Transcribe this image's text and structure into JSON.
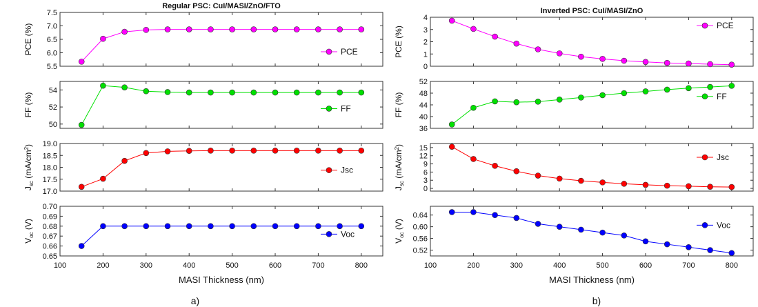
{
  "captions": [
    "a)",
    "b)"
  ],
  "chart_data": [
    {
      "type": "line",
      "title": "Regular PSC: CuI/MASI/ZnO/FTO",
      "xlabel": "MASI Thickness (nm)",
      "x": [
        150,
        200,
        250,
        300,
        350,
        400,
        450,
        500,
        550,
        600,
        650,
        700,
        750,
        800
      ],
      "xlim": [
        100,
        850
      ],
      "xticks": [
        "100",
        "200",
        "300",
        "400",
        "500",
        "600",
        "700",
        "800"
      ],
      "legend_position": "right",
      "panels": [
        {
          "name": "PCE",
          "ylabel": "PCE (%)",
          "color": "#ff00ff",
          "ylim": [
            5.5,
            7.5
          ],
          "yticks": [
            "5.5",
            "6.0",
            "6.5",
            "7.0",
            "7.5"
          ],
          "values": [
            5.67,
            6.52,
            6.78,
            6.85,
            6.87,
            6.87,
            6.87,
            6.87,
            6.87,
            6.87,
            6.87,
            6.87,
            6.87,
            6.87
          ]
        },
        {
          "name": "FF",
          "ylabel": "FF (%)",
          "color": "#00e000",
          "ylim": [
            49.5,
            55
          ],
          "yticks": [
            "50",
            "52",
            "54"
          ],
          "values": [
            49.9,
            54.5,
            54.3,
            53.85,
            53.75,
            53.7,
            53.7,
            53.7,
            53.7,
            53.7,
            53.7,
            53.7,
            53.7,
            53.7
          ]
        },
        {
          "name": "Jsc",
          "ylabel_main": "J",
          "ylabel_sub": "sc",
          "ylabel_tail": " (mA/cm",
          "ylabel_sup": "2",
          "ylabel_end": ")",
          "color": "#ff0000",
          "ylim": [
            17.0,
            19.0
          ],
          "yticks": [
            "17.0",
            "17.5",
            "18.0",
            "18.5",
            "19.0"
          ],
          "values": [
            17.18,
            17.52,
            18.27,
            18.6,
            18.67,
            18.69,
            18.7,
            18.7,
            18.7,
            18.7,
            18.7,
            18.7,
            18.7,
            18.7
          ]
        },
        {
          "name": "Voc",
          "ylabel_main": "V",
          "ylabel_sub": "oc",
          "ylabel_tail": " (V)",
          "color": "#0000ff",
          "ylim": [
            0.65,
            0.7
          ],
          "yticks": [
            "0.65",
            "0.66",
            "0.67",
            "0.68",
            "0.69",
            "0.70"
          ],
          "values": [
            0.66,
            0.68,
            0.68,
            0.68,
            0.68,
            0.68,
            0.68,
            0.68,
            0.68,
            0.68,
            0.68,
            0.68,
            0.68,
            0.68
          ]
        }
      ]
    },
    {
      "type": "line",
      "title": "Inverted PSC: CuI/MASI/ZnO",
      "xlabel": "MASI Thickness (nm)",
      "x": [
        150,
        200,
        250,
        300,
        350,
        400,
        450,
        500,
        550,
        600,
        650,
        700,
        750,
        800
      ],
      "xlim": [
        100,
        850
      ],
      "xticks": [
        "100",
        "200",
        "300",
        "400",
        "500",
        "600",
        "700",
        "800"
      ],
      "legend_position": "top-right",
      "panels": [
        {
          "name": "PCE",
          "ylabel": "PCE (%)",
          "color": "#ff00ff",
          "ylim": [
            0,
            4
          ],
          "yticks": [
            "0",
            "1",
            "2",
            "3",
            "4"
          ],
          "values": [
            3.72,
            3.05,
            2.42,
            1.85,
            1.38,
            1.05,
            0.78,
            0.6,
            0.45,
            0.35,
            0.27,
            0.22,
            0.17,
            0.13
          ]
        },
        {
          "name": "FF",
          "ylabel": "FF (%)",
          "color": "#00e000",
          "ylim": [
            36,
            52
          ],
          "yticks": [
            "36",
            "40",
            "44",
            "48",
            "52"
          ],
          "values": [
            37.3,
            43.0,
            45.2,
            44.9,
            45.1,
            45.8,
            46.5,
            47.3,
            48.0,
            48.6,
            49.2,
            49.7,
            50.1,
            50.5
          ]
        },
        {
          "name": "Jsc",
          "ylabel_main": "J",
          "ylabel_sub": "sc",
          "ylabel_tail": " (mA/cm",
          "ylabel_sup": "2",
          "ylabel_end": ")",
          "color": "#ff0000",
          "ylim": [
            -1,
            16.5
          ],
          "yticks": [
            "0",
            "3",
            "6",
            "9",
            "12",
            "15"
          ],
          "values": [
            15.3,
            10.8,
            8.3,
            6.3,
            4.7,
            3.6,
            2.8,
            2.2,
            1.7,
            1.3,
            1.0,
            0.8,
            0.6,
            0.5
          ]
        },
        {
          "name": "Voc",
          "ylabel_main": "V",
          "ylabel_sub": "oc",
          "ylabel_tail": " (V)",
          "color": "#0000ff",
          "ylim": [
            0.5,
            0.67
          ],
          "yticks": [
            "0.52",
            "0.56",
            "0.60",
            "0.64"
          ],
          "values": [
            0.65,
            0.65,
            0.64,
            0.63,
            0.61,
            0.6,
            0.59,
            0.58,
            0.57,
            0.55,
            0.54,
            0.53,
            0.52,
            0.51
          ]
        }
      ]
    }
  ]
}
